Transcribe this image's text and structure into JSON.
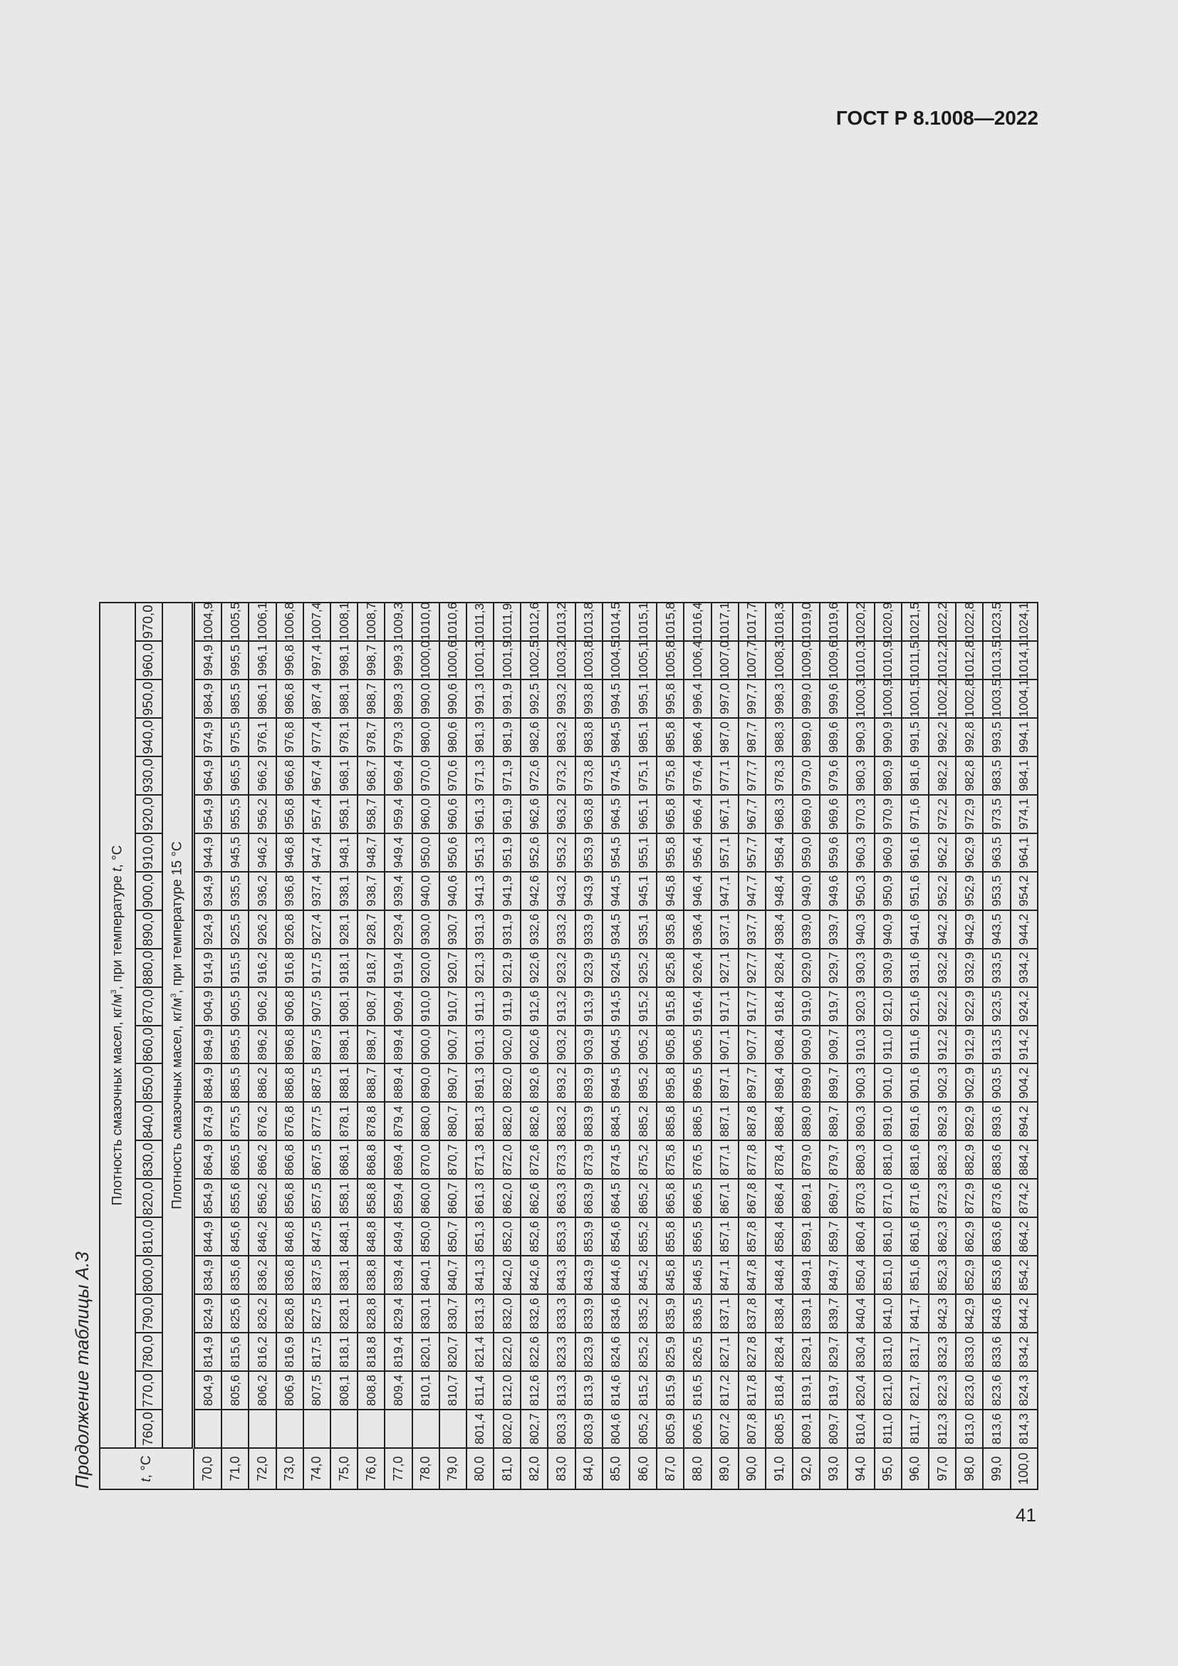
{
  "header": {
    "doc_code": "ГОСТ Р 8.1008—2022"
  },
  "footer": {
    "page_number": "41"
  },
  "table": {
    "caption": "Продолжение таблицы А.3",
    "t_header": "t, °C",
    "group_header_top": "Плотность смазочных масел, кг/м³, при температуре t, °С",
    "group_header_sub": "Плотность смазочных масел, кг/м³, при температуре 15 °С",
    "columns": [
      "760,0",
      "770,0",
      "780,0",
      "790,0",
      "800,0",
      "810,0",
      "820,0",
      "830,0",
      "840,0",
      "850,0",
      "860,0",
      "870,0",
      "880,0",
      "890,0",
      "900,0",
      "910,0",
      "920,0",
      "930,0",
      "940,0",
      "950,0",
      "960,0",
      "970,0"
    ],
    "rows": [
      {
        "t": "70,0",
        "v": [
          "",
          "804,9",
          "814,9",
          "824,9",
          "834,9",
          "844,9",
          "854,9",
          "864,9",
          "874,9",
          "884,9",
          "894,9",
          "904,9",
          "914,9",
          "924,9",
          "934,9",
          "944,9",
          "954,9",
          "964,9",
          "974,9",
          "984,9",
          "994,9",
          "1004,9"
        ]
      },
      {
        "t": "71,0",
        "v": [
          "",
          "805,6",
          "815,6",
          "825,6",
          "835,6",
          "845,6",
          "855,6",
          "865,5",
          "875,5",
          "885,5",
          "895,5",
          "905,5",
          "915,5",
          "925,5",
          "935,5",
          "945,5",
          "955,5",
          "965,5",
          "975,5",
          "985,5",
          "995,5",
          "1005,5"
        ]
      },
      {
        "t": "72,0",
        "v": [
          "",
          "806,2",
          "816,2",
          "826,2",
          "836,2",
          "846,2",
          "856,2",
          "866,2",
          "876,2",
          "886,2",
          "896,2",
          "906,2",
          "916,2",
          "926,2",
          "936,2",
          "946,2",
          "956,2",
          "966,2",
          "976,1",
          "986,1",
          "996,1",
          "1006,1"
        ]
      },
      {
        "t": "73,0",
        "v": [
          "",
          "806,9",
          "816,9",
          "826,8",
          "836,8",
          "846,8",
          "856,8",
          "866,8",
          "876,8",
          "886,8",
          "896,8",
          "906,8",
          "916,8",
          "926,8",
          "936,8",
          "946,8",
          "956,8",
          "966,8",
          "976,8",
          "986,8",
          "996,8",
          "1006,8"
        ]
      },
      {
        "t": "74,0",
        "v": [
          "",
          "807,5",
          "817,5",
          "827,5",
          "837,5",
          "847,5",
          "857,5",
          "867,5",
          "877,5",
          "887,5",
          "897,5",
          "907,5",
          "917,5",
          "927,4",
          "937,4",
          "947,4",
          "957,4",
          "967,4",
          "977,4",
          "987,4",
          "997,4",
          "1007,4"
        ]
      },
      {
        "t": "75,0",
        "v": [
          "",
          "808,1",
          "818,1",
          "828,1",
          "838,1",
          "848,1",
          "858,1",
          "868,1",
          "878,1",
          "888,1",
          "898,1",
          "908,1",
          "918,1",
          "928,1",
          "938,1",
          "948,1",
          "958,1",
          "968,1",
          "978,1",
          "988,1",
          "998,1",
          "1008,1"
        ]
      },
      {
        "t": "76,0",
        "v": [
          "",
          "808,8",
          "818,8",
          "828,8",
          "838,8",
          "848,8",
          "858,8",
          "868,8",
          "878,8",
          "888,7",
          "898,7",
          "908,7",
          "918,7",
          "928,7",
          "938,7",
          "948,7",
          "958,7",
          "968,7",
          "978,7",
          "988,7",
          "998,7",
          "1008,7"
        ]
      },
      {
        "t": "77,0",
        "v": [
          "",
          "809,4",
          "819,4",
          "829,4",
          "839,4",
          "849,4",
          "859,4",
          "869,4",
          "879,4",
          "889,4",
          "899,4",
          "909,4",
          "919,4",
          "929,4",
          "939,4",
          "949,4",
          "959,4",
          "969,4",
          "979,3",
          "989,3",
          "999,3",
          "1009,3"
        ]
      },
      {
        "t": "78,0",
        "v": [
          "",
          "810,1",
          "820,1",
          "830,1",
          "840,1",
          "850,0",
          "860,0",
          "870,0",
          "880,0",
          "890,0",
          "900,0",
          "910,0",
          "920,0",
          "930,0",
          "940,0",
          "950,0",
          "960,0",
          "970,0",
          "980,0",
          "990,0",
          "1000,0",
          "1010,0"
        ]
      },
      {
        "t": "79,0",
        "v": [
          "",
          "810,7",
          "820,7",
          "830,7",
          "840,7",
          "850,7",
          "860,7",
          "870,7",
          "880,7",
          "890,7",
          "900,7",
          "910,7",
          "920,7",
          "930,7",
          "940,6",
          "950,6",
          "960,6",
          "970,6",
          "980,6",
          "990,6",
          "1000,6",
          "1010,6"
        ]
      },
      {
        "t": "80,0",
        "v": [
          "801,4",
          "811,4",
          "821,4",
          "831,3",
          "841,3",
          "851,3",
          "861,3",
          "871,3",
          "881,3",
          "891,3",
          "901,3",
          "911,3",
          "921,3",
          "931,3",
          "941,3",
          "951,3",
          "961,3",
          "971,3",
          "981,3",
          "991,3",
          "1001,3",
          "1011,3"
        ]
      },
      {
        "t": "81,0",
        "v": [
          "802,0",
          "812,0",
          "822,0",
          "832,0",
          "842,0",
          "852,0",
          "862,0",
          "872,0",
          "882,0",
          "892,0",
          "902,0",
          "911,9",
          "921,9",
          "931,9",
          "941,9",
          "951,9",
          "961,9",
          "971,9",
          "981,9",
          "991,9",
          "1001,9",
          "1011,9"
        ]
      },
      {
        "t": "82,0",
        "v": [
          "802,7",
          "812,6",
          "822,6",
          "832,6",
          "842,6",
          "852,6",
          "862,6",
          "872,6",
          "882,6",
          "892,6",
          "902,6",
          "912,6",
          "922,6",
          "932,6",
          "942,6",
          "952,6",
          "962,6",
          "972,6",
          "982,6",
          "992,5",
          "1002,5",
          "1012,6"
        ]
      },
      {
        "t": "83,0",
        "v": [
          "803,3",
          "813,3",
          "823,3",
          "833,3",
          "843,3",
          "853,3",
          "863,3",
          "873,3",
          "883,2",
          "893,2",
          "903,2",
          "913,2",
          "923,2",
          "933,2",
          "943,2",
          "953,2",
          "963,2",
          "973,2",
          "983,2",
          "993,2",
          "1003,2",
          "1013,2"
        ]
      },
      {
        "t": "84,0",
        "v": [
          "803,9",
          "813,9",
          "823,9",
          "833,9",
          "843,9",
          "853,9",
          "863,9",
          "873,9",
          "883,9",
          "893,9",
          "903,9",
          "913,9",
          "923,9",
          "933,9",
          "943,9",
          "953,9",
          "963,8",
          "973,8",
          "983,8",
          "993,8",
          "1003,8",
          "1013,8"
        ]
      },
      {
        "t": "85,0",
        "v": [
          "804,6",
          "814,6",
          "824,6",
          "834,6",
          "844,6",
          "854,6",
          "864,5",
          "874,5",
          "884,5",
          "894,5",
          "904,5",
          "914,5",
          "924,5",
          "934,5",
          "944,5",
          "954,5",
          "964,5",
          "974,5",
          "984,5",
          "994,5",
          "1004,5",
          "1014,5"
        ]
      },
      {
        "t": "86,0",
        "v": [
          "805,2",
          "815,2",
          "825,2",
          "835,2",
          "845,2",
          "855,2",
          "865,2",
          "875,2",
          "885,2",
          "895,2",
          "905,2",
          "915,2",
          "925,2",
          "935,1",
          "945,1",
          "955,1",
          "965,1",
          "975,1",
          "985,1",
          "995,1",
          "1005,1",
          "1015,1"
        ]
      },
      {
        "t": "87,0",
        "v": [
          "805,9",
          "815,9",
          "825,9",
          "835,9",
          "845,8",
          "855,8",
          "865,8",
          "875,8",
          "885,8",
          "895,8",
          "905,8",
          "915,8",
          "925,8",
          "935,8",
          "945,8",
          "955,8",
          "965,8",
          "975,8",
          "985,8",
          "995,8",
          "1005,8",
          "1015,8"
        ]
      },
      {
        "t": "88,0",
        "v": [
          "806,5",
          "816,5",
          "826,5",
          "836,5",
          "846,5",
          "856,5",
          "866,5",
          "876,5",
          "886,5",
          "896,5",
          "906,5",
          "916,4",
          "926,4",
          "936,4",
          "946,4",
          "956,4",
          "966,4",
          "976,4",
          "986,4",
          "996,4",
          "1006,4",
          "1016,4"
        ]
      },
      {
        "t": "89,0",
        "v": [
          "807,2",
          "817,2",
          "827,1",
          "837,1",
          "847,1",
          "857,1",
          "867,1",
          "877,1",
          "887,1",
          "897,1",
          "907,1",
          "917,1",
          "927,1",
          "937,1",
          "947,1",
          "957,1",
          "967,1",
          "977,1",
          "987,0",
          "997,0",
          "1007,0",
          "1017,1"
        ]
      },
      {
        "t": "90,0",
        "v": [
          "807,8",
          "817,8",
          "827,8",
          "837,8",
          "847,8",
          "857,8",
          "867,8",
          "877,8",
          "887,8",
          "897,7",
          "907,7",
          "917,7",
          "927,7",
          "937,7",
          "947,7",
          "957,7",
          "967,7",
          "977,7",
          "987,7",
          "997,7",
          "1007,7",
          "1017,7"
        ]
      },
      {
        "t": "91,0",
        "v": [
          "808,5",
          "818,4",
          "828,4",
          "838,4",
          "848,4",
          "858,4",
          "868,4",
          "878,4",
          "888,4",
          "898,4",
          "908,4",
          "918,4",
          "928,4",
          "938,4",
          "948,4",
          "958,4",
          "968,3",
          "978,3",
          "988,3",
          "998,3",
          "1008,3",
          "1018,3"
        ]
      },
      {
        "t": "92,0",
        "v": [
          "809,1",
          "819,1",
          "829,1",
          "839,1",
          "849,1",
          "859,1",
          "869,1",
          "879,0",
          "889,0",
          "899,0",
          "909,0",
          "919,0",
          "929,0",
          "939,0",
          "949,0",
          "959,0",
          "969,0",
          "979,0",
          "989,0",
          "999,0",
          "1009,0",
          "1019,0"
        ]
      },
      {
        "t": "93,0",
        "v": [
          "809,7",
          "819,7",
          "829,7",
          "839,7",
          "849,7",
          "859,7",
          "869,7",
          "879,7",
          "889,7",
          "899,7",
          "909,7",
          "919,7",
          "929,7",
          "939,7",
          "949,6",
          "959,6",
          "969,6",
          "979,6",
          "989,6",
          "999,6",
          "1009,6",
          "1019,6"
        ]
      },
      {
        "t": "94,0",
        "v": [
          "810,4",
          "820,4",
          "830,4",
          "840,4",
          "850,4",
          "860,4",
          "870,3",
          "880,3",
          "890,3",
          "900,3",
          "910,3",
          "920,3",
          "930,3",
          "940,3",
          "950,3",
          "960,3",
          "970,3",
          "980,3",
          "990,3",
          "1000,3",
          "1010,3",
          "1020,2"
        ]
      },
      {
        "t": "95,0",
        "v": [
          "811,0",
          "821,0",
          "831,0",
          "841,0",
          "851,0",
          "861,0",
          "871,0",
          "881,0",
          "891,0",
          "901,0",
          "911,0",
          "921,0",
          "930,9",
          "940,9",
          "950,9",
          "960,9",
          "970,9",
          "980,9",
          "990,9",
          "1000,9",
          "1010,9",
          "1020,9"
        ]
      },
      {
        "t": "96,0",
        "v": [
          "811,7",
          "821,7",
          "831,7",
          "841,7",
          "851,6",
          "861,6",
          "871,6",
          "881,6",
          "891,6",
          "901,6",
          "911,6",
          "921,6",
          "931,6",
          "941,6",
          "951,6",
          "961,6",
          "971,6",
          "981,6",
          "991,5",
          "1001,5",
          "1011,5",
          "1021,5"
        ]
      },
      {
        "t": "97,0",
        "v": [
          "812,3",
          "822,3",
          "832,3",
          "842,3",
          "852,3",
          "862,3",
          "872,3",
          "882,3",
          "892,3",
          "902,3",
          "912,2",
          "922,2",
          "932,2",
          "942,2",
          "952,2",
          "962,2",
          "972,2",
          "982,2",
          "992,2",
          "1002,2",
          "1012,2",
          "1022,2"
        ]
      },
      {
        "t": "98,0",
        "v": [
          "813,0",
          "823,0",
          "833,0",
          "842,9",
          "852,9",
          "862,9",
          "872,9",
          "882,9",
          "892,9",
          "902,9",
          "912,9",
          "922,9",
          "932,9",
          "942,9",
          "952,9",
          "962,9",
          "972,9",
          "982,8",
          "992,8",
          "1002,8",
          "1012,8",
          "1022,8"
        ]
      },
      {
        "t": "99,0",
        "v": [
          "813,6",
          "823,6",
          "833,6",
          "843,6",
          "853,6",
          "863,6",
          "873,6",
          "883,6",
          "893,6",
          "903,5",
          "913,5",
          "923,5",
          "933,5",
          "943,5",
          "953,5",
          "963,5",
          "973,5",
          "983,5",
          "993,5",
          "1003,5",
          "1013,5",
          "1023,5"
        ]
      },
      {
        "t": "100,0",
        "v": [
          "814,3",
          "824,3",
          "834,2",
          "844,2",
          "854,2",
          "864,2",
          "874,2",
          "884,2",
          "894,2",
          "904,2",
          "914,2",
          "924,2",
          "934,2",
          "944,2",
          "954,2",
          "964,1",
          "974,1",
          "984,1",
          "994,1",
          "1004,1",
          "1014,1",
          "1024,1"
        ]
      }
    ]
  }
}
